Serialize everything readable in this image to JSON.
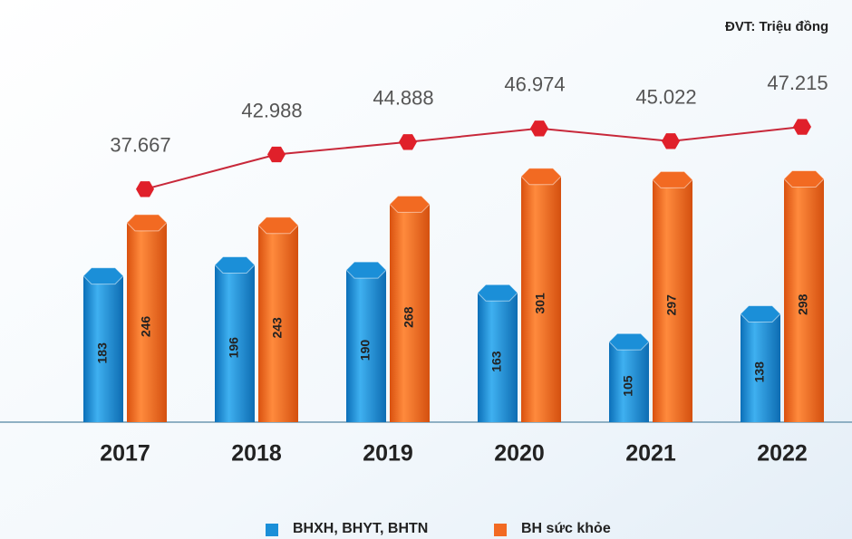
{
  "chart_data": {
    "type": "bar",
    "note": "ĐVT: Triệu đồng",
    "categories": [
      "2017",
      "2018",
      "2019",
      "2020",
      "2021",
      "2022"
    ],
    "series": [
      {
        "name": "BHXH, BHYT, BHTN",
        "color": "#1b8fd8",
        "values": [
          183,
          196,
          190,
          163,
          105,
          138
        ]
      },
      {
        "name": "BH sức khỏe",
        "color": "#f26a22",
        "values": [
          246,
          243,
          268,
          301,
          297,
          298
        ]
      },
      {
        "name": null,
        "type": "line",
        "axis": "y2",
        "color": "#e0202a",
        "values": [
          37667,
          42988,
          44888,
          46974,
          45022,
          47215
        ],
        "value_labels": [
          "37.667",
          "42.988",
          "44.888",
          "46.974",
          "45.022",
          "47.215"
        ]
      }
    ],
    "ylim": [
      0,
      320
    ],
    "y2lim": [
      35000,
      50000
    ]
  }
}
